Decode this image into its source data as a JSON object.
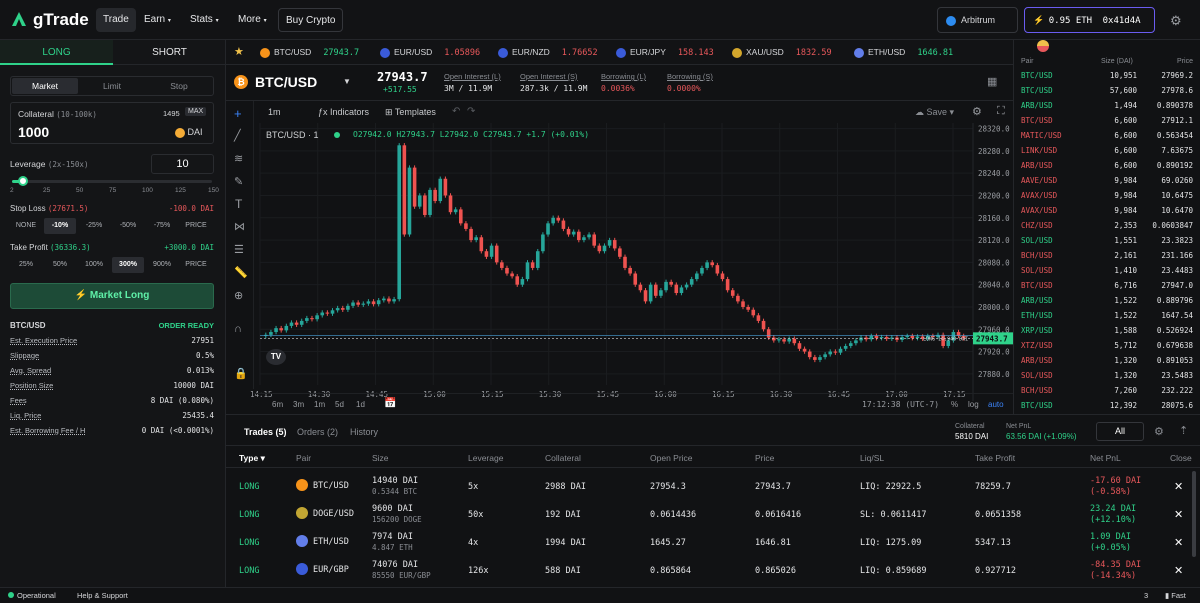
{
  "nav": {
    "brand": "gTrade",
    "items": [
      "Trade",
      "Earn",
      "Stats",
      "More"
    ],
    "buy_crypto": "Buy Crypto",
    "network": "Arbitrum",
    "wallet_balance": "0.95 ETH",
    "wallet_address": "0x41d4A"
  },
  "left": {
    "tab_long": "LONG",
    "tab_short": "SHORT",
    "order_types": [
      "Market",
      "Limit",
      "Stop"
    ],
    "collateral_label": "Collateral",
    "collateral_range": "(10-100k)",
    "collateral_balance": "1495",
    "max_label": "MAX",
    "collateral_value": "1000",
    "collateral_token": "DAI",
    "leverage_label": "Leverage",
    "leverage_range": "(2x-150x)",
    "leverage_value": "10",
    "leverage_ticks": [
      "2",
      "25",
      "50",
      "75",
      "100",
      "125",
      "150"
    ],
    "leverage_fraction": 0.054,
    "stop_loss_label": "Stop Loss",
    "stop_loss_price": "(27671.5)",
    "stop_loss_value": "-100.0 DAI",
    "sl_options": [
      "NONE",
      "-10%",
      "-25%",
      "-50%",
      "-75%",
      "PRICE"
    ],
    "take_profit_label": "Take Profit",
    "take_profit_price": "(36336.3)",
    "take_profit_value": "+3000.0 DAI",
    "tp_options": [
      "25%",
      "50%",
      "100%",
      "300%",
      "900%",
      "PRICE"
    ],
    "submit_label": "Market Long",
    "summary_pair": "BTC/USD",
    "summary_status": "ORDER READY",
    "details": [
      {
        "label": "Est. Execution Price",
        "value": "27951"
      },
      {
        "label": "Slippage",
        "value": "0.5%"
      },
      {
        "label": "Avg. Spread",
        "value": "0.013%"
      },
      {
        "label": "Position Size",
        "value": "10000 DAI"
      },
      {
        "label": "Fees",
        "value": "8 DAI (0.080%)"
      },
      {
        "label": "Liq. Price",
        "value": "25435.4"
      },
      {
        "label": "Est. Borrowing Fee / H",
        "value": "0 DAI (<0.0001%)"
      }
    ]
  },
  "ticker": [
    {
      "pair": "BTC/USD",
      "price": "27943.7",
      "color": "#2fd28a",
      "coin": "#f7931a"
    },
    {
      "pair": "EUR/USD",
      "price": "1.05896",
      "color": "#e8585b",
      "coin": "#3a5bd9"
    },
    {
      "pair": "EUR/NZD",
      "price": "1.76652",
      "color": "#e8585b",
      "coin": "#3a5bd9"
    },
    {
      "pair": "EUR/JPY",
      "price": "158.143",
      "color": "#e8585b",
      "coin": "#3a5bd9"
    },
    {
      "pair": "XAU/USD",
      "price": "1832.59",
      "color": "#e8585b",
      "coin": "#d4a72c"
    },
    {
      "pair": "ETH/USD",
      "price": "1646.81",
      "color": "#2fd28a",
      "coin": "#627eea"
    }
  ],
  "pairhead": {
    "pair": "BTC/USD",
    "price": "27943.7",
    "change": "+517.55",
    "stats": [
      {
        "label": "Open Interest (L)",
        "value": "3M / 11.9M",
        "color": "#e4e5e7"
      },
      {
        "label": "Open Interest (S)",
        "value": "287.3k / 11.9M",
        "color": "#e4e5e7"
      },
      {
        "label": "Borrowing (L)",
        "value": "0.0036%",
        "color": "#e8585b"
      },
      {
        "label": "Borrowing (S)",
        "value": "0.0000%",
        "color": "#e8585b"
      }
    ]
  },
  "chart": {
    "interval": "1m",
    "indicators": "Indicators",
    "templates": "Templates",
    "save": "Save",
    "legend_pair": "BTC/USD",
    "legend_interval": "1",
    "legend_ohlc": "O27942.0 H27943.7 L27942.0 C27943.7 +1.7 (+0.01%)",
    "price_ticks": [
      "28320.0",
      "28280.0",
      "28240.0",
      "28200.0",
      "28160.0",
      "28120.0",
      "28080.0",
      "28040.0",
      "28000.0",
      "27960.0",
      "27920.0",
      "27880.0"
    ],
    "time_ticks": [
      "14:15",
      "14:30",
      "14:45",
      "15:00",
      "15:15",
      "15:30",
      "15:45",
      "16:00",
      "16:15",
      "16:30",
      "16:45",
      "17:00",
      "17:15"
    ],
    "last_price": "27943.7",
    "position_tag": "LONG 14,940 DAI",
    "ranges": [
      "6m",
      "3m",
      "1m",
      "5d",
      "1d"
    ],
    "clock": "17:12:38 (UTC-7)",
    "scale_opts": [
      "%",
      "log",
      "auto"
    ]
  },
  "chart_data": {
    "type": "candlestick",
    "ylim": [
      27860,
      28330
    ],
    "closes": [
      27950,
      27955,
      27962,
      27958,
      27966,
      27972,
      27968,
      27975,
      27980,
      27978,
      27985,
      27990,
      27988,
      27994,
      27998,
      27995,
      28002,
      28008,
      28004,
      28006,
      28010,
      28005,
      28012,
      28015,
      28010,
      28014,
      28290,
      28130,
      28250,
      28180,
      28200,
      28165,
      28210,
      28190,
      28230,
      28200,
      28170,
      28175,
      28150,
      28140,
      28120,
      28125,
      28100,
      28090,
      28110,
      28080,
      28070,
      28060,
      28055,
      28040,
      28050,
      28080,
      28070,
      28100,
      28130,
      28150,
      28160,
      28155,
      28140,
      28130,
      28135,
      28120,
      28125,
      28130,
      28110,
      28100,
      28110,
      28120,
      28105,
      28090,
      28070,
      28060,
      28040,
      28030,
      28010,
      28040,
      28020,
      28030,
      28045,
      28040,
      28025,
      28035,
      28040,
      28050,
      28060,
      28070,
      28080,
      28075,
      28060,
      28050,
      28030,
      28020,
      28010,
      28000,
      27995,
      27985,
      27975,
      27960,
      27945,
      27940,
      27942,
      27938,
      27943,
      27935,
      27925,
      27920,
      27910,
      27905,
      27910,
      27915,
      27920,
      27918,
      27925,
      27930,
      27935,
      27940,
      27945,
      27942,
      27948,
      27944,
      27946,
      27943,
      27945,
      27941,
      27946,
      27948,
      27944,
      27947,
      27943,
      27948,
      27946,
      27950,
      27930,
      27940,
      27955,
      27948,
      27943.7
    ]
  },
  "trades": {
    "tabs": [
      "Trades (5)",
      "Orders (2)",
      "History"
    ],
    "collateral_label": "Collateral",
    "collateral_value": "5810 DAI",
    "net_pnl_label": "Net PnL",
    "net_pnl_value": "63.56 DAI (+1.09%)",
    "filter": "All",
    "headers": [
      "Type",
      "Pair",
      "Size",
      "Leverage",
      "Collateral",
      "Open Price",
      "Price",
      "Liq/SL",
      "Take Profit",
      "Net PnL",
      "Close"
    ],
    "rows": [
      {
        "type": "LONG",
        "pair": "BTC/USD",
        "coin": "#f7931a",
        "size": "14940 DAI",
        "size_sub": "0.5344 BTC",
        "lev": "5x",
        "col": "2988 DAI",
        "open": "27954.3",
        "price": "27943.7",
        "liq": "LIQ: 22922.5",
        "tp": "78259.7",
        "pnl": "-17.60 DAI",
        "pnl_pct": "(-0.58%)",
        "pnl_color": "#e8585b"
      },
      {
        "type": "LONG",
        "pair": "DOGE/USD",
        "coin": "#c2a633",
        "size": "9600 DAI",
        "size_sub": "156200 DOGE",
        "lev": "50x",
        "col": "192 DAI",
        "open": "0.0614436",
        "price": "0.0616416",
        "liq": "SL: 0.0611417",
        "tp": "0.0651358",
        "pnl": "23.24 DAI",
        "pnl_pct": "(+12.10%)",
        "pnl_color": "#2fd28a"
      },
      {
        "type": "LONG",
        "pair": "ETH/USD",
        "coin": "#627eea",
        "size": "7974 DAI",
        "size_sub": "4.847 ETH",
        "lev": "4x",
        "col": "1994 DAI",
        "open": "1645.27",
        "price": "1646.81",
        "liq": "LIQ: 1275.09",
        "tp": "5347.13",
        "pnl": "1.09 DAI",
        "pnl_pct": "(+0.05%)",
        "pnl_color": "#2fd28a"
      },
      {
        "type": "LONG",
        "pair": "EUR/GBP",
        "coin": "#3a5bd9",
        "size": "74076 DAI",
        "size_sub": "85550 EUR/GBP",
        "lev": "126x",
        "col": "588 DAI",
        "open": "0.865864",
        "price": "0.865026",
        "liq": "LIQ: 0.859689",
        "tp": "0.927712",
        "pnl": "-84.35 DAI",
        "pnl_pct": "(-14.34%)",
        "pnl_color": "#e8585b"
      }
    ]
  },
  "book": {
    "headers": [
      "Pair",
      "Size (DAI)",
      "Price"
    ],
    "rows": [
      {
        "pair": "BTC/USD",
        "size": "10,951",
        "price": "27969.2",
        "side": "long"
      },
      {
        "pair": "BTC/USD",
        "size": "57,600",
        "price": "27978.6",
        "side": "long"
      },
      {
        "pair": "ARB/USD",
        "size": "1,494",
        "price": "0.890378",
        "side": "long"
      },
      {
        "pair": "BTC/USD",
        "size": "6,600",
        "price": "27912.1",
        "side": "short"
      },
      {
        "pair": "MATIC/USD",
        "size": "6,600",
        "price": "0.563454",
        "side": "short"
      },
      {
        "pair": "LINK/USD",
        "size": "6,600",
        "price": "7.63675",
        "side": "short"
      },
      {
        "pair": "ARB/USD",
        "size": "6,600",
        "price": "0.890192",
        "side": "short"
      },
      {
        "pair": "AAVE/USD",
        "size": "9,984",
        "price": "69.0260",
        "side": "short"
      },
      {
        "pair": "AVAX/USD",
        "size": "9,984",
        "price": "10.6475",
        "side": "short"
      },
      {
        "pair": "AVAX/USD",
        "size": "9,984",
        "price": "10.6470",
        "side": "short"
      },
      {
        "pair": "CHZ/USD",
        "size": "2,353",
        "price": "0.0603847",
        "side": "short"
      },
      {
        "pair": "SOL/USD",
        "size": "1,551",
        "price": "23.3823",
        "side": "long"
      },
      {
        "pair": "BCH/USD",
        "size": "2,161",
        "price": "231.166",
        "side": "short"
      },
      {
        "pair": "SOL/USD",
        "size": "1,410",
        "price": "23.4483",
        "side": "short"
      },
      {
        "pair": "BTC/USD",
        "size": "6,716",
        "price": "27947.0",
        "side": "short"
      },
      {
        "pair": "ARB/USD",
        "size": "1,522",
        "price": "0.889796",
        "side": "long"
      },
      {
        "pair": "ETH/USD",
        "size": "1,522",
        "price": "1647.54",
        "side": "long"
      },
      {
        "pair": "XRP/USD",
        "size": "1,588",
        "price": "0.526924",
        "side": "long"
      },
      {
        "pair": "XTZ/USD",
        "size": "5,712",
        "price": "0.679638",
        "side": "short"
      },
      {
        "pair": "ARB/USD",
        "size": "1,320",
        "price": "0.891053",
        "side": "short"
      },
      {
        "pair": "SOL/USD",
        "size": "1,320",
        "price": "23.5483",
        "side": "short"
      },
      {
        "pair": "BCH/USD",
        "size": "7,260",
        "price": "232.222",
        "side": "short"
      },
      {
        "pair": "BTC/USD",
        "size": "12,392",
        "price": "28075.6",
        "side": "long"
      }
    ]
  },
  "status": {
    "operational": "Operational",
    "help": "Help & Support",
    "count": "3",
    "speed": "Fast"
  }
}
